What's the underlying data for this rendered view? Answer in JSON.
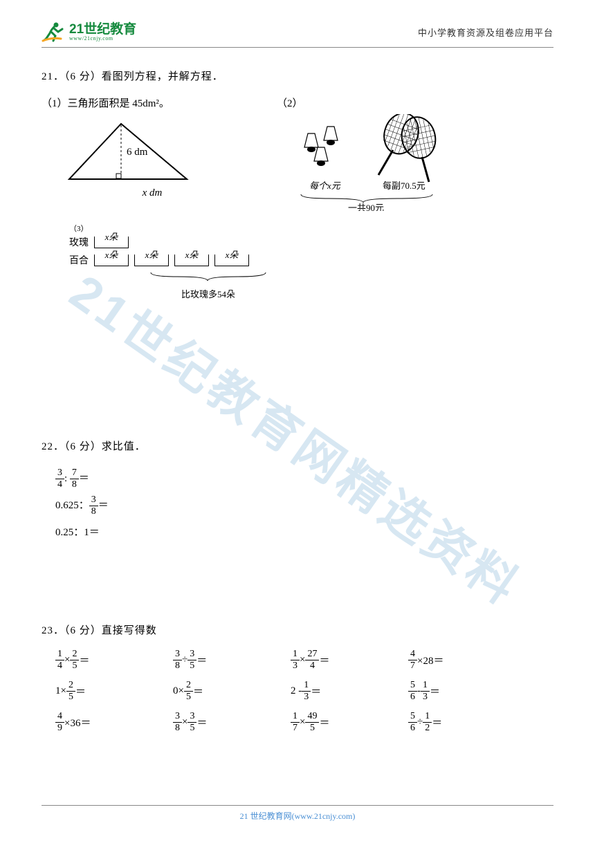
{
  "header": {
    "logo_cn": "21世纪教育",
    "logo_url": "www/21cnjy.com",
    "right_text": "中小学教育资源及组卷应用平台"
  },
  "watermark": "21世纪教育网精选资料",
  "q21": {
    "num": "21．",
    "points": "（6 分）",
    "title": "看图列方程，并解方程．",
    "fig1": {
      "label": "（1）三角形面积是 45dm²。",
      "height_label": "6 dm",
      "base_label": "x dm"
    },
    "fig2": {
      "label": "（2）",
      "left_caption": "每个x元",
      "right_caption": "每副70.5元",
      "total_caption": "一共90元"
    },
    "fig3": {
      "num": "（3）",
      "rose_label": "玫瑰",
      "lily_label": "百合",
      "unit_label": "x朵",
      "compare_label": "比玫瑰多54朵"
    }
  },
  "q22": {
    "num": "22．",
    "points": "（6 分）",
    "title": "求比值．",
    "items": [
      {
        "a_num": "3",
        "a_den": "4",
        "sep": ": ",
        "b_num": "7",
        "b_den": "8",
        "tail": "＝"
      },
      {
        "pre": "0.625：",
        "b_num": "3",
        "b_den": "8",
        "tail": "＝"
      },
      {
        "text": "0.25：1＝"
      }
    ]
  },
  "q23": {
    "num": "23．",
    "points": "（6 分）",
    "title": "直接写得数",
    "cells": [
      {
        "a_num": "1",
        "a_den": "4",
        "op": "×",
        "b_num": "2",
        "b_den": "5",
        "tail": "＝"
      },
      {
        "a_num": "3",
        "a_den": "8",
        "op": "÷",
        "b_num": "3",
        "b_den": "5",
        "tail": "＝"
      },
      {
        "a_num": "1",
        "a_den": "3",
        "op": "×",
        "b_num": "27",
        "b_den": "4",
        "tail": "＝"
      },
      {
        "a_num": "4",
        "a_den": "7",
        "op": "×",
        "n": "28",
        "tail": "＝"
      },
      {
        "n": "1",
        "op": "×",
        "b_num": "2",
        "b_den": "5",
        "tail": "＝"
      },
      {
        "n": "0",
        "op": "×",
        "b_num": "2",
        "b_den": "5",
        "tail": "＝"
      },
      {
        "n": "2",
        "op": " - ",
        "b_num": "1",
        "b_den": "3",
        "tail": "＝"
      },
      {
        "a_num": "5",
        "a_den": "6",
        "op": " - ",
        "b_num": "1",
        "b_den": "3",
        "tail": "＝"
      },
      {
        "a_num": "4",
        "a_den": "9",
        "op": "×",
        "n": "36",
        "tail": "＝"
      },
      {
        "a_num": "3",
        "a_den": "8",
        "op": "×",
        "b_num": "3",
        "b_den": "5",
        "tail": "＝"
      },
      {
        "a_num": "1",
        "a_den": "7",
        "op": "×",
        "b_num": "49",
        "b_den": "5",
        "tail": "＝"
      },
      {
        "a_num": "5",
        "a_den": "6",
        "op": "÷",
        "b_num": "1",
        "b_den": "2",
        "tail": "＝"
      }
    ]
  },
  "footer": "21 世纪教育网(www.21cnjy.com)",
  "colors": {
    "brand_green": "#158a3e",
    "brand_orange": "#f5a623",
    "watermark": "#b8d4e8",
    "footer_blue": "#4a8fd4",
    "rule": "#888888",
    "text": "#000000"
  }
}
